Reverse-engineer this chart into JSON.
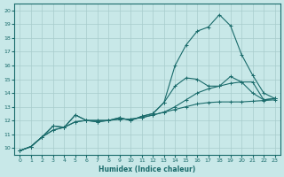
{
  "xlabel": "Humidex (Indice chaleur)",
  "ylabel": "",
  "background_color": "#c8e8e8",
  "grid_color": "#a8cccc",
  "line_color": "#1a6b6b",
  "x_values": [
    0,
    1,
    2,
    3,
    4,
    5,
    6,
    7,
    8,
    9,
    10,
    11,
    12,
    13,
    14,
    15,
    16,
    17,
    18,
    19,
    20,
    21,
    22,
    23
  ],
  "series": [
    [
      9.8,
      10.1,
      10.8,
      11.3,
      11.5,
      11.9,
      12.0,
      11.9,
      12.0,
      12.1,
      12.1,
      12.2,
      12.4,
      12.6,
      12.8,
      13.0,
      13.2,
      13.3,
      13.35,
      13.35,
      13.35,
      13.4,
      13.45,
      13.5
    ],
    [
      9.8,
      10.1,
      10.8,
      11.3,
      11.5,
      11.9,
      12.0,
      11.9,
      12.0,
      12.1,
      12.1,
      12.2,
      12.4,
      12.6,
      13.0,
      13.5,
      14.0,
      14.3,
      14.5,
      14.7,
      14.8,
      14.8,
      13.5,
      13.6
    ],
    [
      9.8,
      10.1,
      10.8,
      11.6,
      11.5,
      12.4,
      12.0,
      12.0,
      12.0,
      12.2,
      12.0,
      12.3,
      12.5,
      13.3,
      14.5,
      15.1,
      15.0,
      14.5,
      14.5,
      15.2,
      14.8,
      14.0,
      13.5,
      13.6
    ],
    [
      9.8,
      10.1,
      10.8,
      11.6,
      11.5,
      12.4,
      12.0,
      12.0,
      12.0,
      12.2,
      12.0,
      12.3,
      12.5,
      13.3,
      16.0,
      17.5,
      18.5,
      18.8,
      19.7,
      18.9,
      16.8,
      15.3,
      14.0,
      13.6
    ]
  ],
  "ylim": [
    9.5,
    20.5
  ],
  "xlim": [
    -0.5,
    23.5
  ],
  "yticks": [
    10,
    11,
    12,
    13,
    14,
    15,
    16,
    17,
    18,
    19,
    20
  ],
  "xticks": [
    0,
    1,
    2,
    3,
    4,
    5,
    6,
    7,
    8,
    9,
    10,
    11,
    12,
    13,
    14,
    15,
    16,
    17,
    18,
    19,
    20,
    21,
    22,
    23
  ],
  "marker": "+",
  "markersize": 3,
  "linewidth": 0.8
}
